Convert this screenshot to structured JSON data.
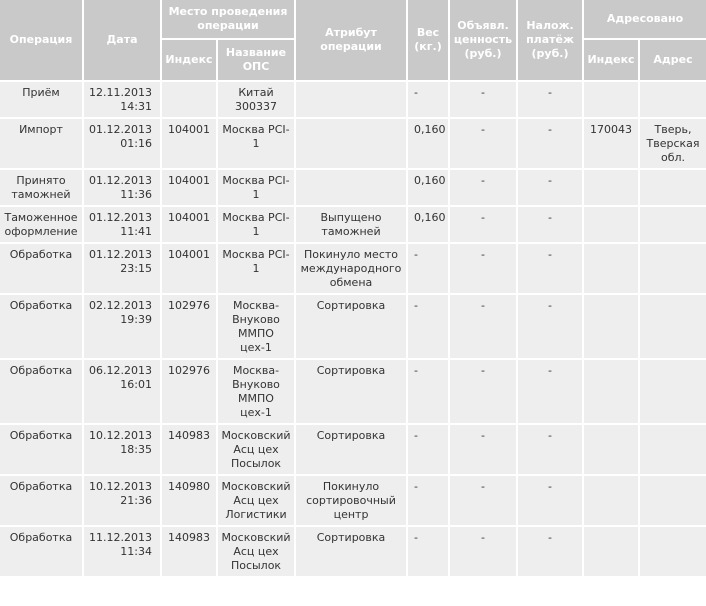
{
  "headers": {
    "operation": "Операция",
    "date": "Дата",
    "place": "Место проведения операции",
    "place_index": "Индекс",
    "place_name": "Название ОПС",
    "attribute": "Атрибут операции",
    "weight": "Вес (кг.)",
    "declared_value": "Объявл. ценность (руб.)",
    "cod": "Налож. платёж (руб.)",
    "addressed": "Адресовано",
    "addr_index": "Индекс",
    "addr_address": "Адрес"
  },
  "rows": [
    {
      "operation": "Приём",
      "date": "12.11.2013",
      "time": "14:31",
      "index": "",
      "name": "Китай 300337",
      "attribute": "",
      "weight": "-",
      "value": "-",
      "cod": "-",
      "addr_index": "",
      "addr": ""
    },
    {
      "operation": "Импорт",
      "date": "01.12.2013",
      "time": "01:16",
      "index": "104001",
      "name": "Москва PCI-1",
      "attribute": "",
      "weight": "0,160",
      "value": "-",
      "cod": "-",
      "addr_index": "170043",
      "addr": "Тверь, Тверская обл."
    },
    {
      "operation": "Принято таможней",
      "date": "01.12.2013",
      "time": "11:36",
      "index": "104001",
      "name": "Москва PCI-1",
      "attribute": "",
      "weight": "0,160",
      "value": "-",
      "cod": "-",
      "addr_index": "",
      "addr": ""
    },
    {
      "operation": "Таможенное оформление",
      "date": "01.12.2013",
      "time": "11:41",
      "index": "104001",
      "name": "Москва PCI-1",
      "attribute": "Выпущено таможней",
      "weight": "0,160",
      "value": "-",
      "cod": "-",
      "addr_index": "",
      "addr": ""
    },
    {
      "operation": "Обработка",
      "date": "01.12.2013",
      "time": "23:15",
      "index": "104001",
      "name": "Москва PCI-1",
      "attribute": "Покинуло место международного обмена",
      "weight": "-",
      "value": "-",
      "cod": "-",
      "addr_index": "",
      "addr": ""
    },
    {
      "operation": "Обработка",
      "date": "02.12.2013",
      "time": "19:39",
      "index": "102976",
      "name": "Москва-Внуково ММПО цех-1",
      "attribute": "Сортировка",
      "weight": "-",
      "value": "-",
      "cod": "-",
      "addr_index": "",
      "addr": ""
    },
    {
      "operation": "Обработка",
      "date": "06.12.2013",
      "time": "16:01",
      "index": "102976",
      "name": "Москва-Внуково ММПО цех-1",
      "attribute": "Сортировка",
      "weight": "-",
      "value": "-",
      "cod": "-",
      "addr_index": "",
      "addr": ""
    },
    {
      "operation": "Обработка",
      "date": "10.12.2013",
      "time": "18:35",
      "index": "140983",
      "name": "Московский Асц цех Посылок",
      "attribute": "Сортировка",
      "weight": "-",
      "value": "-",
      "cod": "-",
      "addr_index": "",
      "addr": ""
    },
    {
      "operation": "Обработка",
      "date": "10.12.2013",
      "time": "21:36",
      "index": "140980",
      "name": "Московский Асц цех Логистики",
      "attribute": "Покинуло сортировочный центр",
      "weight": "-",
      "value": "-",
      "cod": "-",
      "addr_index": "",
      "addr": ""
    },
    {
      "operation": "Обработка",
      "date": "11.12.2013",
      "time": "11:34",
      "index": "140983",
      "name": "Московский Асц цех Посылок",
      "attribute": "Сортировка",
      "weight": "-",
      "value": "-",
      "cod": "-",
      "addr_index": "",
      "addr": ""
    }
  ]
}
